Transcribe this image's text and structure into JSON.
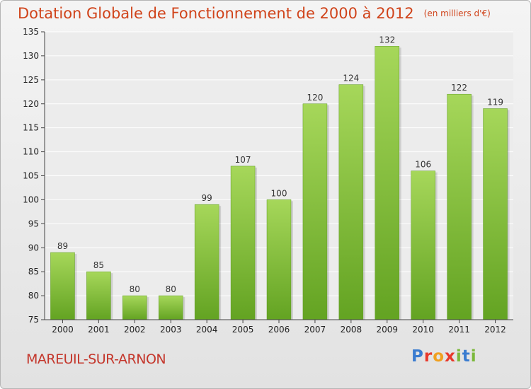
{
  "title": "Dotation Globale de Fonctionnement de 2000 à 2012",
  "subtitle": "(en milliers d'€)",
  "commune": "MAREUIL-SUR-ARNON",
  "logo": {
    "text": "Proxiti",
    "letters": [
      "P",
      "r",
      "o",
      "x",
      "i",
      "t",
      "i"
    ],
    "colors": [
      "#3a7cd0",
      "#e8392b",
      "#f0a01f",
      "#e8392b",
      "#7bb83a",
      "#3a7cd0",
      "#7bb83a"
    ]
  },
  "colors": {
    "bar_top": "#a6d75a",
    "bar_bottom": "#63a322",
    "title": "#d0431a",
    "commune": "#c4362b"
  },
  "chart_data": {
    "type": "bar",
    "title": "Dotation Globale de Fonctionnement de 2000 à 2012",
    "subtitle": "(en milliers d'€)",
    "categories": [
      "2000",
      "2001",
      "2002",
      "2003",
      "2004",
      "2005",
      "2006",
      "2007",
      "2008",
      "2009",
      "2010",
      "2011",
      "2012"
    ],
    "values": [
      89,
      85,
      80,
      80,
      99,
      107,
      100,
      120,
      124,
      132,
      106,
      122,
      119
    ],
    "ylim": [
      75,
      135
    ],
    "yticks": [
      75,
      80,
      85,
      90,
      95,
      100,
      105,
      110,
      115,
      120,
      125,
      130,
      135
    ],
    "grid": true,
    "legend": "none"
  }
}
